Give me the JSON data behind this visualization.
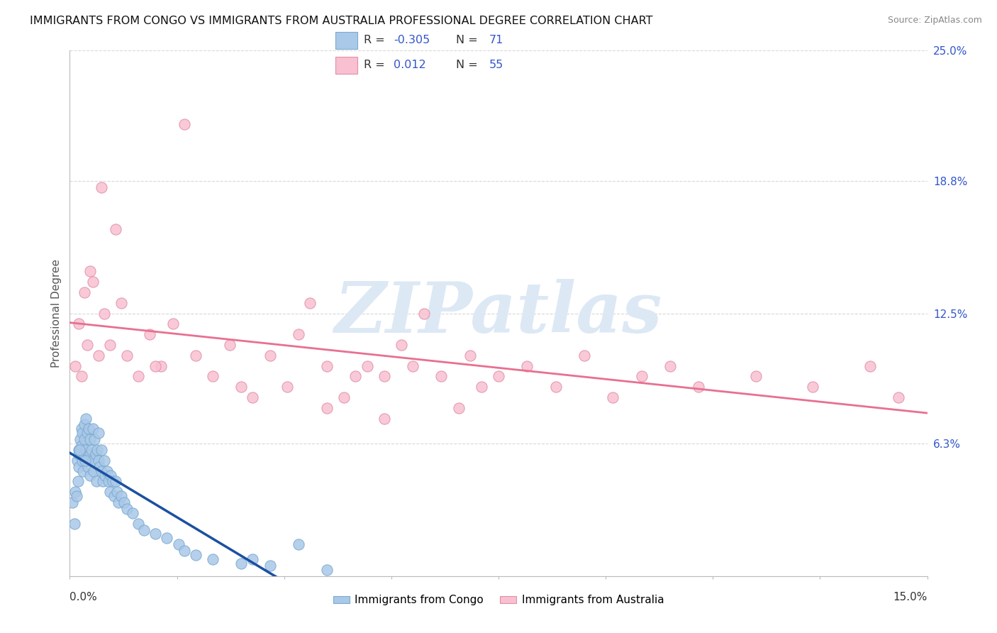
{
  "title": "IMMIGRANTS FROM CONGO VS IMMIGRANTS FROM AUSTRALIA PROFESSIONAL DEGREE CORRELATION CHART",
  "source": "Source: ZipAtlas.com",
  "ylabel": "Professional Degree",
  "x_min": 0.0,
  "x_max": 15.0,
  "y_min": 0.0,
  "y_max": 25.0,
  "y_ticks": [
    0.0,
    6.3,
    12.5,
    18.8,
    25.0
  ],
  "y_tick_labels": [
    "",
    "6.3%",
    "12.5%",
    "18.8%",
    "25.0%"
  ],
  "congo_color": "#aac8e8",
  "congo_edge": "#7aaad0",
  "australia_color": "#f8c0d0",
  "australia_edge": "#e090a8",
  "trend_congo_color": "#1a50a0",
  "trend_australia_color": "#e87090",
  "watermark": "ZIPatlas",
  "watermark_color": "#dde8f5",
  "background_color": "#ffffff",
  "grid_color": "#d8d8d8",
  "title_fontsize": 11.5,
  "source_fontsize": 9,
  "legend_r_color": "#3355cc",
  "legend_n_color": "#3355cc",
  "R_congo_label": "-0.305",
  "N_congo_label": "71",
  "R_aus_label": "0.012",
  "N_aus_label": "55",
  "congo_x": [
    0.05,
    0.08,
    0.1,
    0.12,
    0.13,
    0.14,
    0.15,
    0.15,
    0.16,
    0.18,
    0.2,
    0.2,
    0.22,
    0.22,
    0.23,
    0.25,
    0.25,
    0.26,
    0.28,
    0.28,
    0.3,
    0.3,
    0.32,
    0.33,
    0.35,
    0.35,
    0.36,
    0.38,
    0.4,
    0.4,
    0.42,
    0.43,
    0.45,
    0.46,
    0.48,
    0.5,
    0.5,
    0.52,
    0.55,
    0.55,
    0.58,
    0.6,
    0.62,
    0.65,
    0.68,
    0.7,
    0.72,
    0.75,
    0.78,
    0.8,
    0.82,
    0.85,
    0.9,
    0.95,
    1.0,
    1.1,
    1.2,
    1.3,
    1.5,
    1.7,
    1.9,
    2.0,
    2.2,
    2.5,
    3.0,
    3.2,
    3.5,
    4.0,
    4.5,
    0.17,
    0.27
  ],
  "congo_y": [
    3.5,
    2.5,
    4.0,
    3.8,
    5.5,
    4.5,
    6.0,
    5.2,
    5.8,
    6.5,
    6.2,
    7.0,
    5.5,
    6.8,
    5.0,
    6.5,
    7.2,
    5.8,
    6.0,
    7.5,
    5.5,
    6.8,
    5.2,
    7.0,
    5.8,
    6.5,
    4.8,
    6.0,
    5.5,
    7.0,
    5.0,
    6.5,
    5.8,
    4.5,
    6.0,
    5.5,
    6.8,
    5.2,
    5.0,
    6.0,
    4.5,
    5.5,
    4.8,
    5.0,
    4.5,
    4.0,
    4.8,
    4.5,
    3.8,
    4.5,
    4.0,
    3.5,
    3.8,
    3.5,
    3.2,
    3.0,
    2.5,
    2.2,
    2.0,
    1.8,
    1.5,
    1.2,
    1.0,
    0.8,
    0.6,
    0.8,
    0.5,
    1.5,
    0.3,
    6.0,
    5.5
  ],
  "aus_x": [
    0.1,
    0.15,
    0.2,
    0.25,
    0.3,
    0.4,
    0.5,
    0.6,
    0.7,
    0.8,
    0.9,
    1.0,
    1.2,
    1.4,
    1.6,
    1.8,
    2.0,
    2.2,
    2.5,
    2.8,
    3.0,
    3.5,
    3.8,
    4.0,
    4.2,
    4.5,
    4.8,
    5.0,
    5.2,
    5.5,
    5.8,
    6.0,
    6.2,
    6.5,
    6.8,
    7.0,
    7.2,
    7.5,
    8.0,
    8.5,
    9.0,
    9.5,
    10.0,
    10.5,
    11.0,
    12.0,
    13.0,
    14.0,
    14.5,
    0.35,
    0.55,
    1.5,
    3.2,
    4.5,
    5.5
  ],
  "aus_y": [
    10.0,
    12.0,
    9.5,
    13.5,
    11.0,
    14.0,
    10.5,
    12.5,
    11.0,
    16.5,
    13.0,
    10.5,
    9.5,
    11.5,
    10.0,
    12.0,
    21.5,
    10.5,
    9.5,
    11.0,
    9.0,
    10.5,
    9.0,
    11.5,
    13.0,
    10.0,
    8.5,
    9.5,
    10.0,
    9.5,
    11.0,
    10.0,
    12.5,
    9.5,
    8.0,
    10.5,
    9.0,
    9.5,
    10.0,
    9.0,
    10.5,
    8.5,
    9.5,
    10.0,
    9.0,
    9.5,
    9.0,
    10.0,
    8.5,
    14.5,
    18.5,
    10.0,
    8.5,
    8.0,
    7.5
  ]
}
